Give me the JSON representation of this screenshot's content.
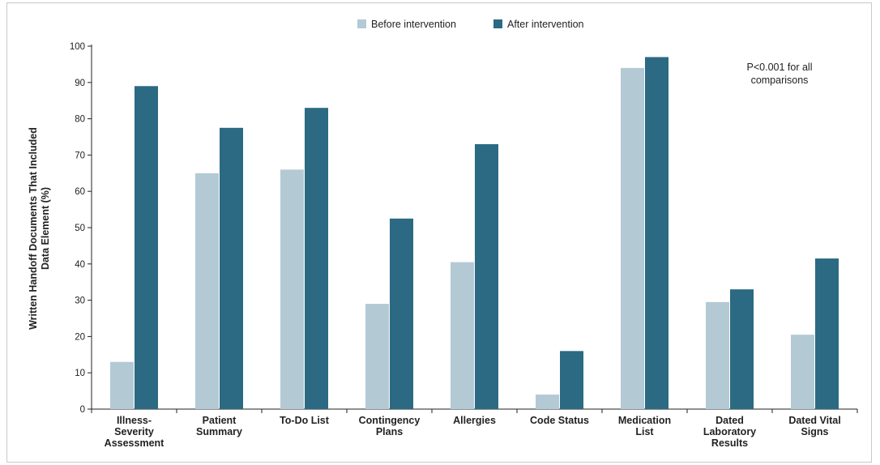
{
  "chart_data": {
    "type": "bar",
    "ylabel_lines": [
      "Written Handoff Documents That Included",
      "Data Element (%)"
    ],
    "ylim": [
      0,
      100
    ],
    "yticks": [
      0,
      10,
      20,
      30,
      40,
      50,
      60,
      70,
      80,
      90,
      100
    ],
    "grid": false,
    "legend_position": "top-center",
    "categories": [
      [
        "Illness-",
        "Severity",
        "Assessment"
      ],
      [
        "Patient",
        "Summary"
      ],
      [
        "To-Do List"
      ],
      [
        "Contingency",
        "Plans"
      ],
      [
        "Allergies"
      ],
      [
        "Code Status"
      ],
      [
        "Medication",
        "List"
      ],
      [
        "Dated",
        "Laboratory",
        "Results"
      ],
      [
        "Dated Vital",
        "Signs"
      ]
    ],
    "series": [
      {
        "name": "Before intervention",
        "color": "#b3cad5",
        "values": [
          13,
          65,
          66,
          29,
          40.5,
          4,
          94,
          29.5,
          20.5
        ]
      },
      {
        "name": "After intervention",
        "color": "#2b6a82",
        "values": [
          89,
          77.5,
          83,
          52.5,
          73,
          16,
          97,
          33,
          41.5
        ]
      }
    ],
    "annotation_lines": [
      "P<0.001 for all",
      "comparisons"
    ]
  }
}
